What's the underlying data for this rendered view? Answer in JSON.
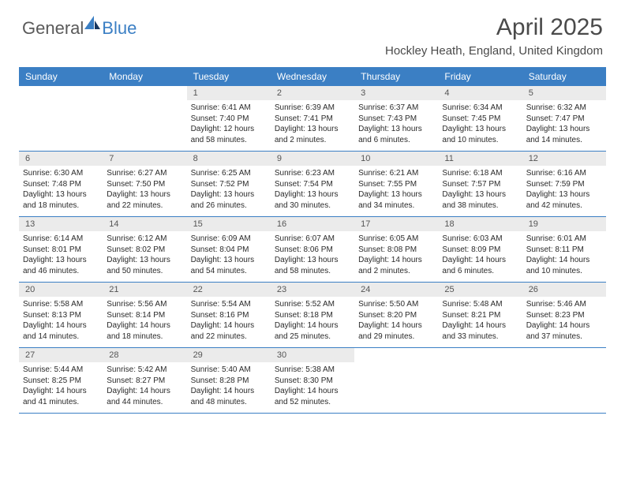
{
  "logo": {
    "word1": "General",
    "word2": "Blue"
  },
  "title": "April 2025",
  "location": "Hockley Heath, England, United Kingdom",
  "colors": {
    "header_bg": "#3b7fc4",
    "header_text": "#ffffff",
    "daynum_bg": "#ebebeb",
    "daynum_text": "#555555",
    "text": "#2a2a2a",
    "logo_gray": "#5a5a5a",
    "logo_blue": "#3b7fc4"
  },
  "fonts": {
    "title_size": 30,
    "location_size": 15,
    "header_size": 12,
    "daynum_size": 11,
    "cell_size": 10
  },
  "day_names": [
    "Sunday",
    "Monday",
    "Tuesday",
    "Wednesday",
    "Thursday",
    "Friday",
    "Saturday"
  ],
  "weeks": [
    [
      null,
      null,
      {
        "n": "1",
        "sr": "Sunrise: 6:41 AM",
        "ss": "Sunset: 7:40 PM",
        "d1": "Daylight: 12 hours",
        "d2": "and 58 minutes."
      },
      {
        "n": "2",
        "sr": "Sunrise: 6:39 AM",
        "ss": "Sunset: 7:41 PM",
        "d1": "Daylight: 13 hours",
        "d2": "and 2 minutes."
      },
      {
        "n": "3",
        "sr": "Sunrise: 6:37 AM",
        "ss": "Sunset: 7:43 PM",
        "d1": "Daylight: 13 hours",
        "d2": "and 6 minutes."
      },
      {
        "n": "4",
        "sr": "Sunrise: 6:34 AM",
        "ss": "Sunset: 7:45 PM",
        "d1": "Daylight: 13 hours",
        "d2": "and 10 minutes."
      },
      {
        "n": "5",
        "sr": "Sunrise: 6:32 AM",
        "ss": "Sunset: 7:47 PM",
        "d1": "Daylight: 13 hours",
        "d2": "and 14 minutes."
      }
    ],
    [
      {
        "n": "6",
        "sr": "Sunrise: 6:30 AM",
        "ss": "Sunset: 7:48 PM",
        "d1": "Daylight: 13 hours",
        "d2": "and 18 minutes."
      },
      {
        "n": "7",
        "sr": "Sunrise: 6:27 AM",
        "ss": "Sunset: 7:50 PM",
        "d1": "Daylight: 13 hours",
        "d2": "and 22 minutes."
      },
      {
        "n": "8",
        "sr": "Sunrise: 6:25 AM",
        "ss": "Sunset: 7:52 PM",
        "d1": "Daylight: 13 hours",
        "d2": "and 26 minutes."
      },
      {
        "n": "9",
        "sr": "Sunrise: 6:23 AM",
        "ss": "Sunset: 7:54 PM",
        "d1": "Daylight: 13 hours",
        "d2": "and 30 minutes."
      },
      {
        "n": "10",
        "sr": "Sunrise: 6:21 AM",
        "ss": "Sunset: 7:55 PM",
        "d1": "Daylight: 13 hours",
        "d2": "and 34 minutes."
      },
      {
        "n": "11",
        "sr": "Sunrise: 6:18 AM",
        "ss": "Sunset: 7:57 PM",
        "d1": "Daylight: 13 hours",
        "d2": "and 38 minutes."
      },
      {
        "n": "12",
        "sr": "Sunrise: 6:16 AM",
        "ss": "Sunset: 7:59 PM",
        "d1": "Daylight: 13 hours",
        "d2": "and 42 minutes."
      }
    ],
    [
      {
        "n": "13",
        "sr": "Sunrise: 6:14 AM",
        "ss": "Sunset: 8:01 PM",
        "d1": "Daylight: 13 hours",
        "d2": "and 46 minutes."
      },
      {
        "n": "14",
        "sr": "Sunrise: 6:12 AM",
        "ss": "Sunset: 8:02 PM",
        "d1": "Daylight: 13 hours",
        "d2": "and 50 minutes."
      },
      {
        "n": "15",
        "sr": "Sunrise: 6:09 AM",
        "ss": "Sunset: 8:04 PM",
        "d1": "Daylight: 13 hours",
        "d2": "and 54 minutes."
      },
      {
        "n": "16",
        "sr": "Sunrise: 6:07 AM",
        "ss": "Sunset: 8:06 PM",
        "d1": "Daylight: 13 hours",
        "d2": "and 58 minutes."
      },
      {
        "n": "17",
        "sr": "Sunrise: 6:05 AM",
        "ss": "Sunset: 8:08 PM",
        "d1": "Daylight: 14 hours",
        "d2": "and 2 minutes."
      },
      {
        "n": "18",
        "sr": "Sunrise: 6:03 AM",
        "ss": "Sunset: 8:09 PM",
        "d1": "Daylight: 14 hours",
        "d2": "and 6 minutes."
      },
      {
        "n": "19",
        "sr": "Sunrise: 6:01 AM",
        "ss": "Sunset: 8:11 PM",
        "d1": "Daylight: 14 hours",
        "d2": "and 10 minutes."
      }
    ],
    [
      {
        "n": "20",
        "sr": "Sunrise: 5:58 AM",
        "ss": "Sunset: 8:13 PM",
        "d1": "Daylight: 14 hours",
        "d2": "and 14 minutes."
      },
      {
        "n": "21",
        "sr": "Sunrise: 5:56 AM",
        "ss": "Sunset: 8:14 PM",
        "d1": "Daylight: 14 hours",
        "d2": "and 18 minutes."
      },
      {
        "n": "22",
        "sr": "Sunrise: 5:54 AM",
        "ss": "Sunset: 8:16 PM",
        "d1": "Daylight: 14 hours",
        "d2": "and 22 minutes."
      },
      {
        "n": "23",
        "sr": "Sunrise: 5:52 AM",
        "ss": "Sunset: 8:18 PM",
        "d1": "Daylight: 14 hours",
        "d2": "and 25 minutes."
      },
      {
        "n": "24",
        "sr": "Sunrise: 5:50 AM",
        "ss": "Sunset: 8:20 PM",
        "d1": "Daylight: 14 hours",
        "d2": "and 29 minutes."
      },
      {
        "n": "25",
        "sr": "Sunrise: 5:48 AM",
        "ss": "Sunset: 8:21 PM",
        "d1": "Daylight: 14 hours",
        "d2": "and 33 minutes."
      },
      {
        "n": "26",
        "sr": "Sunrise: 5:46 AM",
        "ss": "Sunset: 8:23 PM",
        "d1": "Daylight: 14 hours",
        "d2": "and 37 minutes."
      }
    ],
    [
      {
        "n": "27",
        "sr": "Sunrise: 5:44 AM",
        "ss": "Sunset: 8:25 PM",
        "d1": "Daylight: 14 hours",
        "d2": "and 41 minutes."
      },
      {
        "n": "28",
        "sr": "Sunrise: 5:42 AM",
        "ss": "Sunset: 8:27 PM",
        "d1": "Daylight: 14 hours",
        "d2": "and 44 minutes."
      },
      {
        "n": "29",
        "sr": "Sunrise: 5:40 AM",
        "ss": "Sunset: 8:28 PM",
        "d1": "Daylight: 14 hours",
        "d2": "and 48 minutes."
      },
      {
        "n": "30",
        "sr": "Sunrise: 5:38 AM",
        "ss": "Sunset: 8:30 PM",
        "d1": "Daylight: 14 hours",
        "d2": "and 52 minutes."
      },
      null,
      null,
      null
    ]
  ]
}
